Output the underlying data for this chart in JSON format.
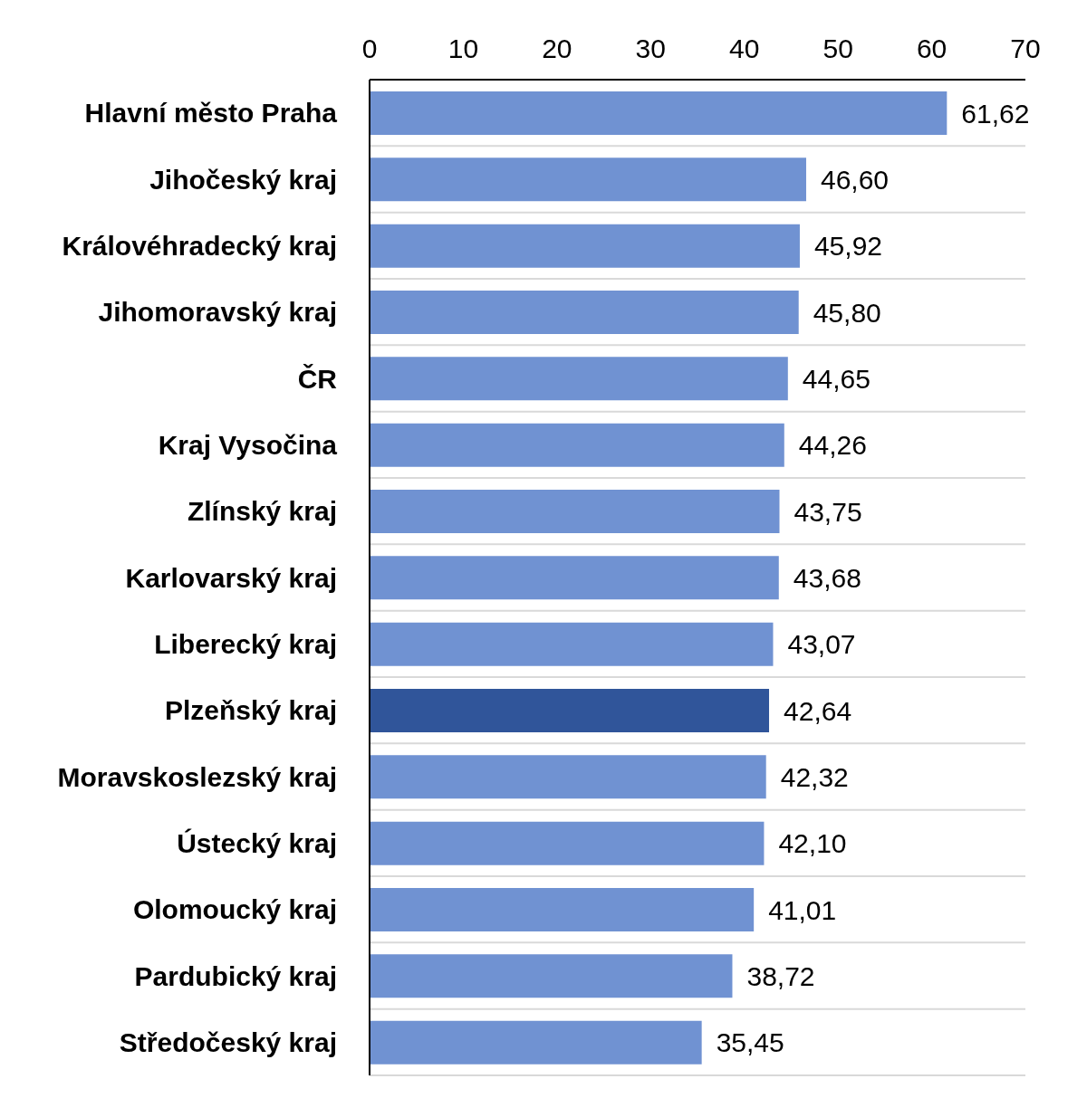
{
  "chart_data": {
    "type": "bar",
    "orientation": "horizontal",
    "categories": [
      "Hlavní město Praha",
      "Jihočeský kraj",
      "Královéhradecký kraj",
      "Jihomoravský kraj",
      "ČR",
      "Kraj Vysočina",
      "Zlínský kraj",
      "Karlovarský kraj",
      "Liberecký kraj",
      "Plzeňský kraj",
      "Moravskoslezský kraj",
      "Ústecký kraj",
      "Olomoucký kraj",
      "Pardubický kraj",
      "Středočeský kraj"
    ],
    "values": [
      61.62,
      46.6,
      45.92,
      45.8,
      44.65,
      44.26,
      43.75,
      43.68,
      43.07,
      42.64,
      42.32,
      42.1,
      41.01,
      38.72,
      35.45
    ],
    "value_labels": [
      "61,62",
      "46,60",
      "45,92",
      "45,80",
      "44,65",
      "44,26",
      "43,75",
      "43,68",
      "43,07",
      "42,64",
      "42,32",
      "42,10",
      "41,01",
      "38,72",
      "35,45"
    ],
    "colors": [
      "#7092d2",
      "#7092d2",
      "#7092d2",
      "#7092d2",
      "#7092d2",
      "#7092d2",
      "#7092d2",
      "#7092d2",
      "#7092d2",
      "#30559a",
      "#7092d2",
      "#7092d2",
      "#7092d2",
      "#7092d2",
      "#7092d2"
    ],
    "xlim": [
      0,
      70
    ],
    "xticks": [
      0,
      10,
      20,
      30,
      40,
      50,
      60,
      70
    ],
    "grid": "y"
  }
}
